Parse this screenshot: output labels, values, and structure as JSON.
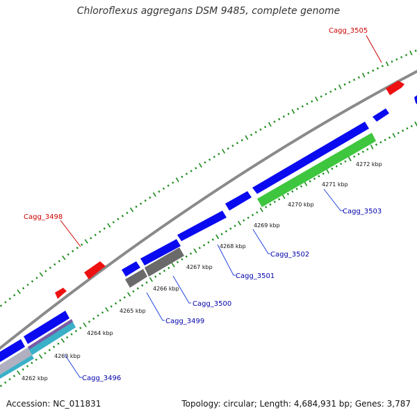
{
  "title": "Chloroflexus aggregans DSM 9485, complete genome",
  "footer": {
    "accession": "Accession: NC_011831",
    "summary": "Topology: circular; Length: 4,684,931 bp; Genes: 3,787"
  },
  "colors": {
    "backbone": "#8a8a8a",
    "tick": "#1a8a1a",
    "cds_forward": "#0a0af0",
    "cds_reverse": "#0a0af0",
    "rna": "#ee1111",
    "pseudogene": "#6a6a6a",
    "highlight": "#3ec63e",
    "label_red": "#cc0000",
    "label_blue": "#0000aa",
    "stroke_blue": "#2244dd"
  },
  "scale_labels": [
    "4262 kbp",
    "4263 kbp",
    "4264 kbp",
    "4265 kbp",
    "4266 kbp",
    "4267 kbp",
    "4268 kbp",
    "4269 kbp",
    "4270 kbp",
    "4271 kbp",
    "4272 kbp"
  ],
  "gene_labels": [
    {
      "text": "Cagg_3505",
      "type": "rna"
    },
    {
      "text": "Cagg_3498",
      "type": "rna"
    },
    {
      "text": "Cagg_3503",
      "type": "cds"
    },
    {
      "text": "Cagg_3502",
      "type": "cds"
    },
    {
      "text": "Cagg_3501",
      "type": "cds"
    },
    {
      "text": "Cagg_3500",
      "type": "cds"
    },
    {
      "text": "Cagg_3499",
      "type": "cds"
    },
    {
      "text": "Cagg_3496",
      "type": "cds"
    }
  ]
}
